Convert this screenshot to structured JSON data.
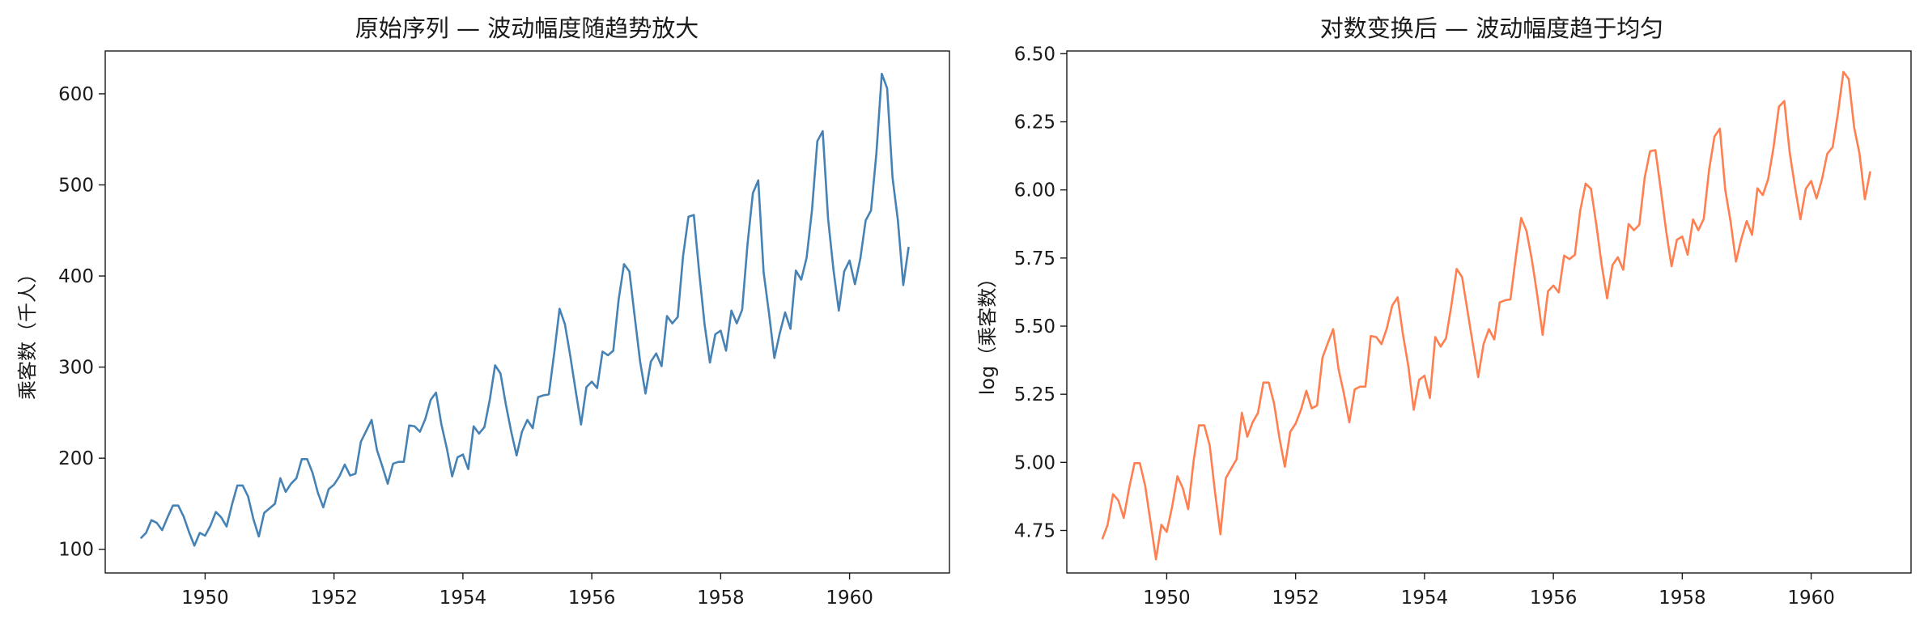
{
  "chart_data": [
    {
      "type": "line",
      "title": "原始序列 — 波动幅度随趋势放大",
      "xlabel": "",
      "ylabel": "乘客数（千人）",
      "color": "#4682b4",
      "xlim": [
        1948.45,
        1961.55
      ],
      "ylim": [
        74,
        647
      ],
      "xticks": [
        1950,
        1952,
        1954,
        1956,
        1958,
        1960
      ],
      "xtick_labels": [
        "1950",
        "1952",
        "1954",
        "1956",
        "1958",
        "1960"
      ],
      "yticks": [
        100,
        200,
        300,
        400,
        500,
        600
      ],
      "ytick_labels": [
        "100",
        "200",
        "300",
        "400",
        "500",
        "600"
      ],
      "x_start": 1949.0,
      "x_step": 0.0833333,
      "series": [
        {
          "values": [
            112,
            118,
            132,
            129,
            121,
            135,
            148,
            148,
            136,
            119,
            104,
            118,
            115,
            126,
            141,
            135,
            125,
            149,
            170,
            170,
            158,
            133,
            114,
            140,
            145,
            150,
            178,
            163,
            172,
            178,
            199,
            199,
            184,
            162,
            146,
            166,
            171,
            180,
            193,
            181,
            183,
            218,
            230,
            242,
            209,
            191,
            172,
            194,
            196,
            196,
            236,
            235,
            229,
            243,
            264,
            272,
            237,
            211,
            180,
            201,
            204,
            188,
            235,
            227,
            234,
            264,
            302,
            293,
            259,
            229,
            203,
            229,
            242,
            233,
            267,
            269,
            270,
            315,
            364,
            347,
            312,
            274,
            237,
            278,
            284,
            277,
            317,
            313,
            318,
            374,
            413,
            405,
            355,
            306,
            271,
            306,
            315,
            301,
            356,
            348,
            355,
            422,
            465,
            467,
            404,
            347,
            305,
            336,
            340,
            318,
            362,
            348,
            363,
            435,
            491,
            505,
            404,
            359,
            310,
            337,
            360,
            342,
            406,
            396,
            420,
            472,
            548,
            559,
            463,
            407,
            362,
            405,
            417,
            391,
            419,
            461,
            472,
            535,
            622,
            606,
            508,
            461,
            390,
            432
          ]
        }
      ]
    },
    {
      "type": "line",
      "title": "对数变换后 — 波动幅度趋于均匀",
      "xlabel": "",
      "ylabel": "log（乘客数）",
      "color": "#ff7f50",
      "xlim": [
        1948.45,
        1961.55
      ],
      "ylim": [
        4.594,
        6.51
      ],
      "xticks": [
        1950,
        1952,
        1954,
        1956,
        1958,
        1960
      ],
      "xtick_labels": [
        "1950",
        "1952",
        "1954",
        "1956",
        "1958",
        "1960"
      ],
      "yticks": [
        4.75,
        5.0,
        5.25,
        5.5,
        5.75,
        6.0,
        6.25,
        6.5
      ],
      "ytick_labels": [
        "4.75",
        "5.00",
        "5.25",
        "5.50",
        "5.75",
        "6.00",
        "6.25",
        "6.50"
      ],
      "x_start": 1949.0,
      "x_step": 0.0833333,
      "series": [
        {
          "values": [
            4.718,
            4.771,
            4.883,
            4.86,
            4.796,
            4.905,
            4.997,
            4.997,
            4.913,
            4.779,
            4.644,
            4.771,
            4.745,
            4.836,
            4.949,
            4.905,
            4.828,
            5.004,
            5.136,
            5.136,
            5.063,
            4.89,
            4.736,
            4.942,
            4.977,
            5.011,
            5.182,
            5.094,
            5.147,
            5.182,
            5.293,
            5.293,
            5.215,
            5.088,
            4.984,
            5.112,
            5.142,
            5.193,
            5.263,
            5.198,
            5.209,
            5.384,
            5.438,
            5.489,
            5.342,
            5.252,
            5.147,
            5.268,
            5.278,
            5.278,
            5.464,
            5.46,
            5.434,
            5.493,
            5.576,
            5.606,
            5.468,
            5.352,
            5.193,
            5.303,
            5.318,
            5.236,
            5.46,
            5.425,
            5.455,
            5.576,
            5.71,
            5.68,
            5.557,
            5.434,
            5.313,
            5.434,
            5.489,
            5.451,
            5.587,
            5.595,
            5.598,
            5.753,
            5.897,
            5.849,
            5.743,
            5.613,
            5.468,
            5.628,
            5.649,
            5.624,
            5.759,
            5.746,
            5.762,
            5.924,
            6.023,
            6.004,
            5.872,
            5.724,
            5.602,
            5.724,
            5.753,
            5.707,
            5.875,
            5.852,
            5.872,
            6.045,
            6.142,
            6.146,
            6.001,
            5.849,
            5.72,
            5.817,
            5.829,
            5.762,
            5.892,
            5.852,
            5.894,
            6.075,
            6.196,
            6.225,
            6.001,
            5.883,
            5.737,
            5.82,
            5.886,
            5.835,
            6.006,
            5.981,
            6.04,
            6.157,
            6.306,
            6.326,
            6.138,
            6.009,
            5.892,
            6.004,
            6.033,
            5.969,
            6.038,
            6.133,
            6.157,
            6.283,
            6.433,
            6.407,
            6.23,
            6.133,
            5.966,
            6.068
          ]
        }
      ]
    }
  ]
}
